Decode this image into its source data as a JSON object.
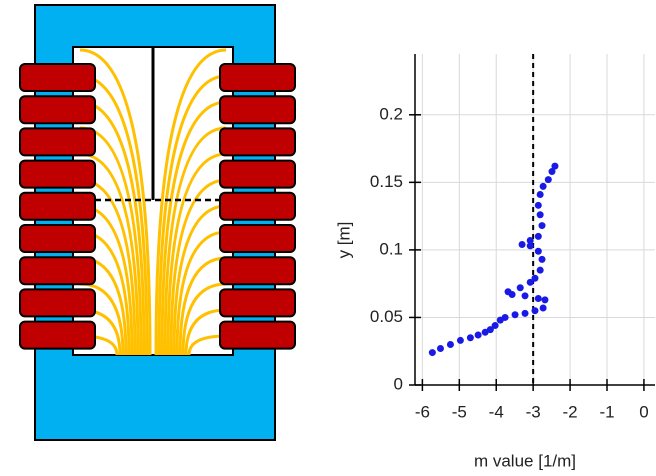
{
  "chart_data": {
    "type": "scatter",
    "xlabel": "m value [1/m]",
    "ylabel": "y [m]",
    "xlim": [
      -6.2,
      0.3
    ],
    "xticks": [
      -6,
      -5,
      -4,
      -3,
      -2,
      -1,
      0
    ],
    "ylim": [
      0,
      0.245
    ],
    "yticks": [
      0,
      0.05,
      0.1,
      0.15,
      0.2
    ],
    "grid": true,
    "vline": -3,
    "color": "#1a1ae6",
    "x": [
      -5.73,
      -5.51,
      -5.24,
      -4.97,
      -4.7,
      -4.49,
      -4.3,
      -4.16,
      -4.03,
      -3.89,
      -3.76,
      -3.49,
      -3.22,
      -2.95,
      -2.73,
      -2.68,
      -2.86,
      -3.22,
      -3.57,
      -3.68,
      -3.35,
      -3.08,
      -2.95,
      -2.81,
      -2.76,
      -2.86,
      -3.08,
      -3.3,
      -3.08,
      -2.86,
      -2.76,
      -2.81,
      -2.86,
      -2.81,
      -2.73,
      -2.59,
      -2.49,
      -2.41
    ],
    "values": [
      0.024,
      0.027,
      0.03,
      0.033,
      0.035,
      0.037,
      0.039,
      0.041,
      0.044,
      0.048,
      0.05,
      0.052,
      0.053,
      0.055,
      0.057,
      0.063,
      0.064,
      0.066,
      0.067,
      0.069,
      0.072,
      0.076,
      0.079,
      0.085,
      0.093,
      0.099,
      0.103,
      0.104,
      0.107,
      0.11,
      0.118,
      0.126,
      0.133,
      0.141,
      0.147,
      0.152,
      0.158,
      0.162
    ]
  }
}
